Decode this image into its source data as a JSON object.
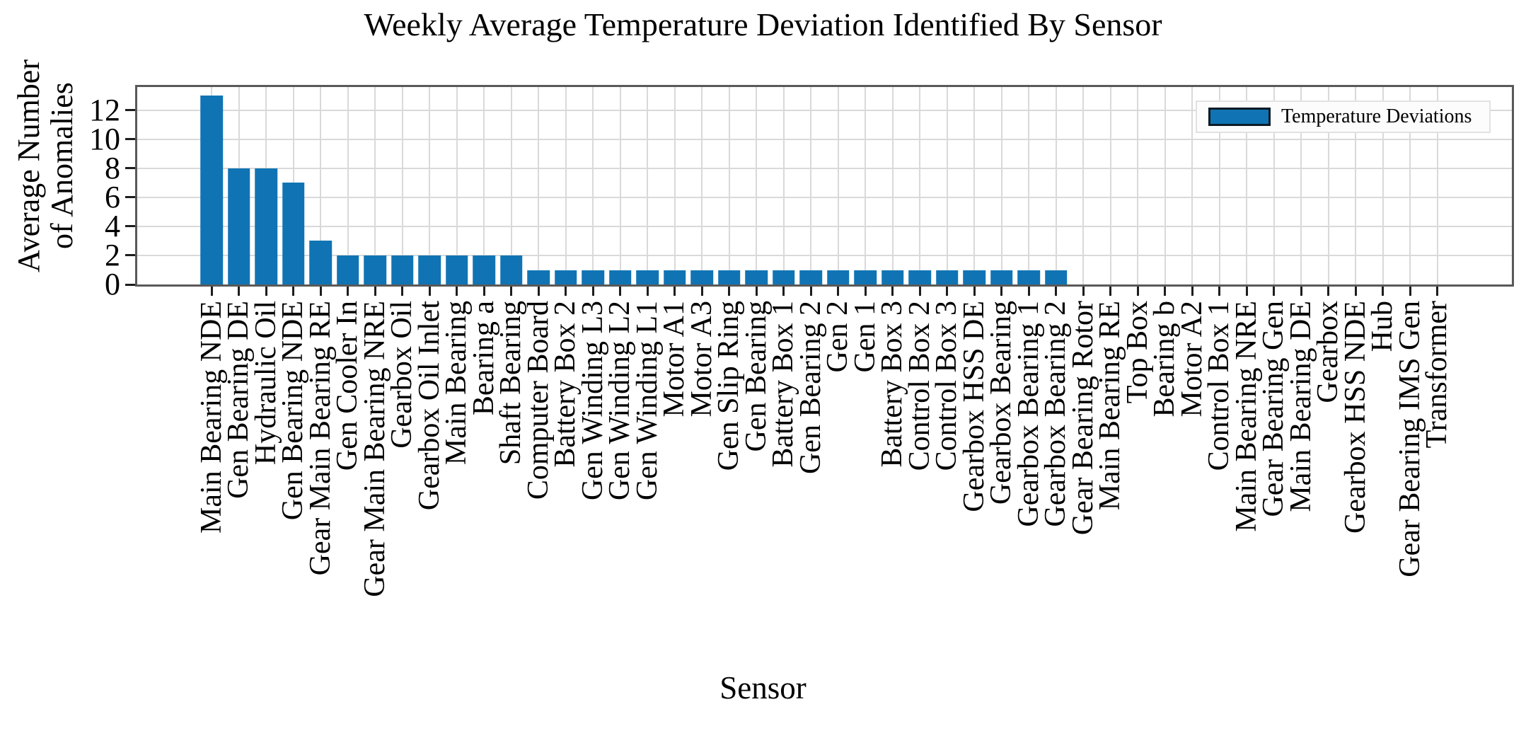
{
  "chart_data": {
    "type": "bar",
    "title": "Weekly Average Temperature Deviation Identified By Sensor",
    "xlabel": "Sensor",
    "ylabel_lines": [
      "Average Number",
      "of Anomalies"
    ],
    "legend": {
      "label": "Temperature Deviations",
      "position": "upper right"
    },
    "categories": [
      "Main Bearing NDE",
      "Gen Bearing DE",
      "Hydraulic Oil",
      "Gen Bearing NDE",
      "Gear Main Bearing RE",
      "Gen Cooler In",
      "Gear Main Bearing NRE",
      "Gearbox Oil",
      "Gearbox Oil Inlet",
      "Main Bearing",
      "Bearing a",
      "Shaft Bearing",
      "Computer Board",
      "Battery Box 2",
      "Gen Winding L3",
      "Gen Winding L2",
      "Gen Winding L1",
      "Motor A1",
      "Motor A3",
      "Gen Slip Ring",
      "Gen Bearing",
      "Battery Box 1",
      "Gen Bearing 2",
      "Gen 2",
      "Gen 1",
      "Battery Box 3",
      "Control Box 2",
      "Control Box 3",
      "Gearbox HSS DE",
      "Gearbox Bearing",
      "Gearbox Bearing 1",
      "Gearbox Bearing 2",
      "Gear Bearing Rotor",
      "Main Bearing RE",
      "Top Box",
      "Bearing b",
      "Motor A2",
      "Control Box 1",
      "Main Bearing NRE",
      "Gear Bearing Gen",
      "Main Bearing DE",
      "Gearbox",
      "Gearbox HSS NDE",
      "Hub",
      "Gear Bearing IMS Gen",
      "Transformer"
    ],
    "values": [
      13,
      8,
      8,
      7,
      3,
      2,
      2,
      2,
      2,
      2,
      2,
      2,
      1,
      1,
      1,
      1,
      1,
      1,
      1,
      1,
      1,
      1,
      1,
      1,
      1,
      1,
      1,
      1,
      1,
      1,
      1,
      1,
      0,
      0,
      0,
      0,
      0,
      0,
      0,
      0,
      0,
      0,
      0,
      0,
      0,
      0
    ],
    "yticks": [
      0,
      2,
      4,
      6,
      8,
      10,
      12
    ],
    "ylim": [
      0,
      13.6
    ],
    "grid": true,
    "colors": {
      "bar": "#1074b4",
      "grid": "#d9d9d9",
      "spine": "#595959",
      "tick": "#1d1d1d"
    }
  }
}
